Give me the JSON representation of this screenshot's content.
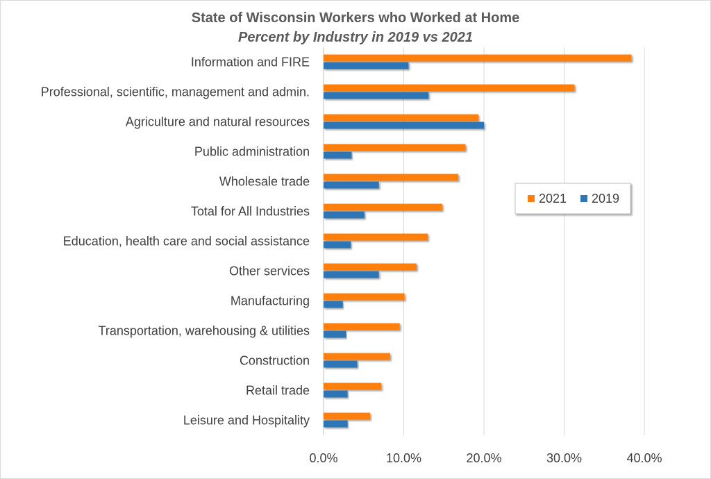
{
  "chart_data": {
    "type": "bar",
    "orientation": "horizontal",
    "title": "State of Wisconsin Workers who Worked at Home",
    "subtitle": "Percent by Industry in 2019 vs 2021",
    "categories": [
      "Information and FIRE",
      "Professional, scientific, management and admin.",
      "Agriculture and natural resources",
      "Public administration",
      "Wholesale trade",
      "Total for All Industries",
      "Education, health care and social assistance",
      "Other services",
      "Manufacturing",
      "Transportation, warehousing & utilities",
      "Construction",
      "Retail trade",
      "Leisure and Hospitality"
    ],
    "series": [
      {
        "name": "2021",
        "color": "#ff7f0e",
        "values": [
          38.4,
          31.3,
          19.3,
          17.7,
          16.8,
          14.8,
          13.0,
          11.6,
          10.1,
          9.5,
          8.3,
          7.2,
          5.8
        ]
      },
      {
        "name": "2019",
        "color": "#2e75b6",
        "values": [
          10.6,
          13.1,
          20.0,
          3.5,
          6.9,
          5.1,
          3.4,
          6.9,
          2.4,
          2.8,
          4.2,
          3.0,
          3.0
        ]
      }
    ],
    "xlim": [
      0,
      40
    ],
    "xticks": [
      "0.0%",
      "10.0%",
      "20.0%",
      "30.0%",
      "40.0%"
    ],
    "grid": true,
    "legend_position": "right"
  }
}
